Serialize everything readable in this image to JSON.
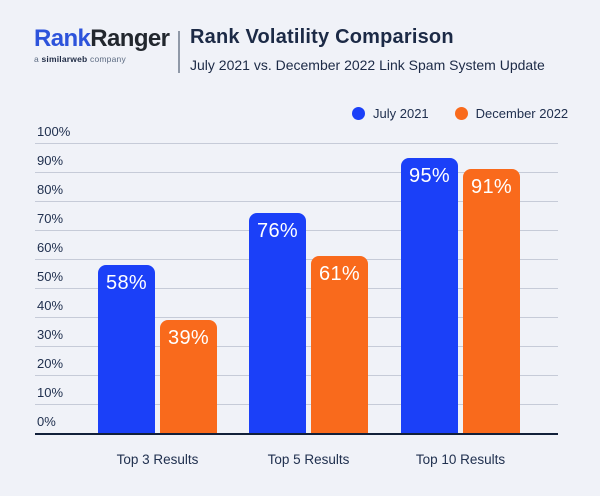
{
  "page": {
    "background": "#F0F2F8",
    "gridline_color": "#C6CBD8",
    "axis_color": "#12203A",
    "text_color": "#1C2A46"
  },
  "header": {
    "logo": {
      "part1": "Rank",
      "part2": "Ranger",
      "part1_color": "#2D53DB",
      "part2_color": "#22272E",
      "tagline_prefix": "a",
      "tagline_brand": "similarweb",
      "tagline_suffix": "company"
    },
    "title": "Rank Volatility Comparison",
    "subtitle": "July 2021 vs. December 2022 Link Spam System Update"
  },
  "chart_data": {
    "type": "bar",
    "categories": [
      "Top 3 Results",
      "Top 5 Results",
      "Top 10 Results"
    ],
    "series": [
      {
        "name": "July 2021",
        "color": "#1B40F8",
        "values": [
          58,
          76,
          95
        ]
      },
      {
        "name": "December 2022",
        "color": "#F96A1C",
        "values": [
          39,
          61,
          91
        ]
      }
    ],
    "value_suffix": "%",
    "yticks": [
      "0%",
      "10%",
      "20%",
      "30%",
      "40%",
      "50%",
      "60%",
      "70%",
      "80%",
      "90%",
      "100%"
    ],
    "ylim": [
      0,
      100
    ],
    "grid": true,
    "legend_position": "top-right",
    "title": "Rank Volatility Comparison",
    "subtitle": "July 2021 vs. December 2022 Link Spam System Update",
    "xlabel": "",
    "ylabel": ""
  }
}
